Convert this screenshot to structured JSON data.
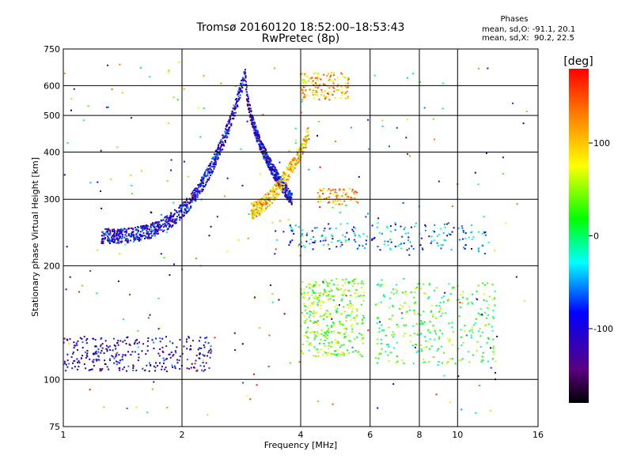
{
  "chart_data": {
    "type": "scatter",
    "title": "Tromsø 20160120 18:52:00–18:53:43",
    "subtitle": "RwPretec (8p)",
    "xlabel": "Frequency [MHz]",
    "ylabel": "Stationary phase Virtual Height [km]",
    "x_scale": "log",
    "y_scale": "log",
    "xlim": [
      1,
      16
    ],
    "ylim": [
      75,
      750
    ],
    "x_ticks": [
      1,
      2,
      4,
      6,
      8,
      10,
      16
    ],
    "y_ticks": [
      75,
      100,
      200,
      300,
      400,
      500,
      600,
      750
    ],
    "grid": true,
    "stats_title": "Phases",
    "stats_lines": [
      "mean, sd,O: -91.1, 20.1",
      "mean, sd,X:  90.2, 22.5"
    ],
    "colorbar": {
      "label": "[deg]",
      "ticks": [
        100,
        0,
        -100
      ],
      "range": [
        -180,
        180
      ],
      "colors": [
        "#000000",
        "#5a0080",
        "#0000ff",
        "#00ffff",
        "#00ff00",
        "#ffff00",
        "#ff8000",
        "#ff0000"
      ]
    },
    "clusters": [
      {
        "name": "trace-O-lower",
        "freq_range": [
          1.25,
          2.9
        ],
        "height_range": [
          240,
          650
        ],
        "phase": -100,
        "count": 900
      },
      {
        "name": "trace-O-upper",
        "freq_range": [
          2.9,
          3.8
        ],
        "height_range": [
          300,
          650
        ],
        "phase": -110,
        "count": 500
      },
      {
        "name": "trace-X",
        "freq_range": [
          3.0,
          4.2
        ],
        "height_range": [
          280,
          450
        ],
        "phase": 100,
        "count": 350
      },
      {
        "name": "top-cluster",
        "freq_range": [
          4.0,
          5.3
        ],
        "height_range": [
          550,
          650
        ],
        "phase": 110,
        "count": 150
      },
      {
        "name": "mid-cluster",
        "freq_range": [
          4.4,
          5.6
        ],
        "height_range": [
          290,
          320
        ],
        "phase": 110,
        "count": 80
      },
      {
        "name": "E-layer",
        "freq_range": [
          1.0,
          2.4
        ],
        "height_range": [
          105,
          130
        ],
        "phase": -110,
        "count": 300
      },
      {
        "name": "scatter-high",
        "freq_range": [
          4.0,
          5.8
        ],
        "height_range": [
          115,
          185
        ],
        "phase": 40,
        "count": 350
      },
      {
        "name": "scatter-right",
        "freq_range": [
          6.2,
          12.5
        ],
        "height_range": [
          110,
          180
        ],
        "phase": 20,
        "count": 300
      },
      {
        "name": "scatter-250",
        "freq_range": [
          3.7,
          12.0
        ],
        "height_range": [
          220,
          260
        ],
        "phase": -60,
        "count": 200
      }
    ]
  }
}
